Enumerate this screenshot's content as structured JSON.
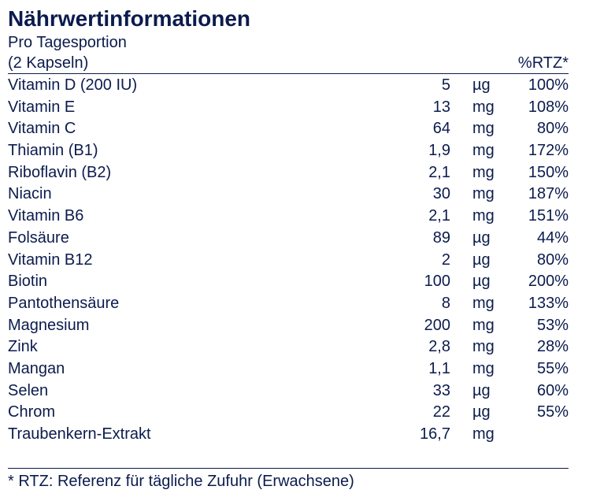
{
  "title": "Nährwertinformationen",
  "serving": {
    "line1": "Pro Tagesportion",
    "line2": "(2 Kapseln)",
    "rtz_header": "%RTZ*"
  },
  "rows": [
    {
      "name": "Vitamin D (200 IU)",
      "amount": "5",
      "unit": "µg",
      "pct": "100%"
    },
    {
      "name": "Vitamin E",
      "amount": "13",
      "unit": "mg",
      "pct": "108%"
    },
    {
      "name": "Vitamin C",
      "amount": "64",
      "unit": "mg",
      "pct": "80%"
    },
    {
      "name": "Thiamin (B1)",
      "amount": "1,9",
      "unit": "mg",
      "pct": "172%"
    },
    {
      "name": "Riboflavin (B2)",
      "amount": "2,1",
      "unit": "mg",
      "pct": "150%"
    },
    {
      "name": "Niacin",
      "amount": "30",
      "unit": "mg",
      "pct": "187%"
    },
    {
      "name": "Vitamin B6",
      "amount": "2,1",
      "unit": "mg",
      "pct": "151%"
    },
    {
      "name": "Folsäure",
      "amount": "89",
      "unit": "µg",
      "pct": "44%"
    },
    {
      "name": "Vitamin B12",
      "amount": "2",
      "unit": "µg",
      "pct": "80%"
    },
    {
      "name": "Biotin",
      "amount": "100",
      "unit": "µg",
      "pct": "200%"
    },
    {
      "name": "Pantothensäure",
      "amount": "8",
      "unit": "mg",
      "pct": "133%"
    },
    {
      "name": "Magnesium",
      "amount": "200",
      "unit": "mg",
      "pct": "53%"
    },
    {
      "name": "Zink",
      "amount": "2,8",
      "unit": "mg",
      "pct": "28%"
    },
    {
      "name": "Mangan",
      "amount": "1,1",
      "unit": "mg",
      "pct": "55%"
    },
    {
      "name": "Selen",
      "amount": "33",
      "unit": "µg",
      "pct": "60%"
    },
    {
      "name": "Chrom",
      "amount": "22",
      "unit": "µg",
      "pct": "55%"
    },
    {
      "name": "Traubenkern-Extrakt",
      "amount": "16,7",
      "unit": "mg",
      "pct": ""
    }
  ],
  "footnote": "* RTZ: Referenz für tägliche Zufuhr (Erwachsene)",
  "colors": {
    "text": "#0b1b4d",
    "background": "#ffffff"
  }
}
